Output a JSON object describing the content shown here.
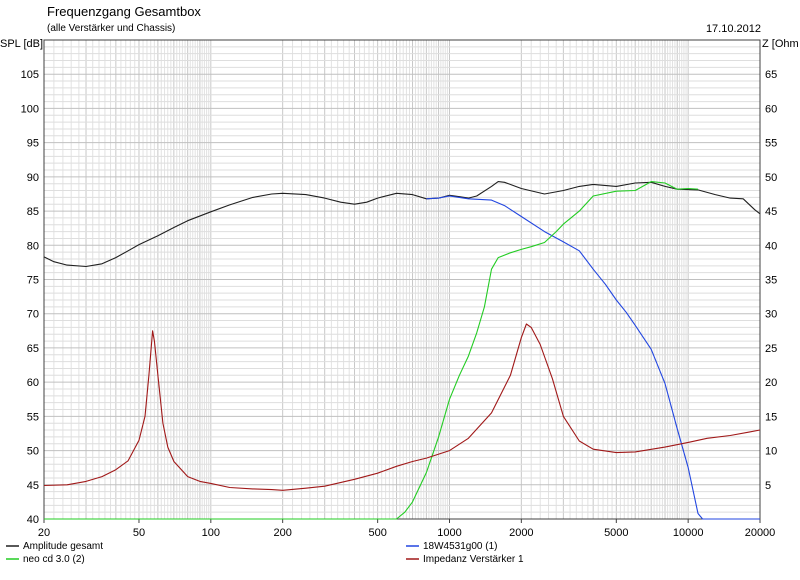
{
  "header": {
    "title": "Frequenzgang Gesamtbox",
    "subtitle": "(alle Verstärker und Chassis)",
    "date": "17.10.2012"
  },
  "chart_data": {
    "type": "line",
    "xscale": "log",
    "xlim": [
      20,
      20000
    ],
    "ylim_left": [
      40,
      110
    ],
    "ylim_right": [
      0,
      70
    ],
    "ylabel_left": "SPL [dB]",
    "ylabel_right": "Z [Ohm",
    "grid": true,
    "x_ticks": [
      20,
      50,
      100,
      200,
      500,
      1000,
      2000,
      5000,
      10000,
      20000
    ],
    "x_tick_labels": [
      "20",
      "50",
      "100",
      "200",
      "500",
      "1000",
      "2000",
      "5000",
      "10000",
      "20000"
    ],
    "y_ticks_left": [
      40,
      45,
      50,
      55,
      60,
      65,
      70,
      75,
      80,
      85,
      90,
      95,
      100,
      105
    ],
    "y_ticks_right": [
      5,
      10,
      15,
      20,
      25,
      30,
      35,
      40,
      45,
      50,
      55,
      60,
      65
    ],
    "legend_position": "bottom",
    "series": [
      {
        "name": "Amplitude gesamt",
        "color": "#202020",
        "axis": "left",
        "points": [
          [
            20,
            78.3
          ],
          [
            22,
            77.6
          ],
          [
            25,
            77.1
          ],
          [
            30,
            76.9
          ],
          [
            35,
            77.3
          ],
          [
            40,
            78.2
          ],
          [
            45,
            79.2
          ],
          [
            50,
            80.1
          ],
          [
            60,
            81.4
          ],
          [
            70,
            82.6
          ],
          [
            80,
            83.6
          ],
          [
            100,
            84.9
          ],
          [
            120,
            85.9
          ],
          [
            150,
            87.0
          ],
          [
            180,
            87.5
          ],
          [
            200,
            87.6
          ],
          [
            250,
            87.4
          ],
          [
            300,
            86.9
          ],
          [
            350,
            86.3
          ],
          [
            400,
            86.0
          ],
          [
            450,
            86.3
          ],
          [
            500,
            86.9
          ],
          [
            600,
            87.6
          ],
          [
            700,
            87.4
          ],
          [
            800,
            86.8
          ],
          [
            900,
            86.9
          ],
          [
            1000,
            87.3
          ],
          [
            1100,
            87.1
          ],
          [
            1200,
            86.9
          ],
          [
            1300,
            87.2
          ],
          [
            1500,
            88.6
          ],
          [
            1600,
            89.3
          ],
          [
            1700,
            89.2
          ],
          [
            2000,
            88.3
          ],
          [
            2500,
            87.5
          ],
          [
            3000,
            88.0
          ],
          [
            3500,
            88.6
          ],
          [
            4000,
            88.9
          ],
          [
            5000,
            88.6
          ],
          [
            6000,
            89.1
          ],
          [
            7000,
            89.2
          ],
          [
            8000,
            88.6
          ],
          [
            9000,
            88.2
          ],
          [
            11000,
            88.1
          ],
          [
            13000,
            87.4
          ],
          [
            15000,
            86.9
          ],
          [
            17000,
            86.8
          ],
          [
            19000,
            85.2
          ],
          [
            20000,
            84.6
          ]
        ]
      },
      {
        "name": "18W4531g00 (1)",
        "color": "#2246e0",
        "axis": "left",
        "points": [
          [
            800,
            86.8
          ],
          [
            900,
            86.9
          ],
          [
            1000,
            87.2
          ],
          [
            1200,
            86.8
          ],
          [
            1500,
            86.6
          ],
          [
            1700,
            85.8
          ],
          [
            2000,
            84.2
          ],
          [
            2500,
            82.0
          ],
          [
            3000,
            80.5
          ],
          [
            3500,
            79.2
          ],
          [
            4000,
            76.5
          ],
          [
            4500,
            74.3
          ],
          [
            5000,
            72.0
          ],
          [
            5500,
            70.2
          ],
          [
            6000,
            68.3
          ],
          [
            7000,
            64.8
          ],
          [
            8000,
            59.8
          ],
          [
            9000,
            53.2
          ],
          [
            10000,
            47.5
          ],
          [
            11000,
            40.8
          ],
          [
            11500,
            40.0
          ],
          [
            20000,
            40.0
          ]
        ]
      },
      {
        "name": "neo cd 3.0 (2)",
        "color": "#22cc22",
        "axis": "left",
        "points": [
          [
            20,
            40.0
          ],
          [
            600,
            40.0
          ],
          [
            650,
            41.0
          ],
          [
            700,
            42.5
          ],
          [
            800,
            46.8
          ],
          [
            900,
            52.0
          ],
          [
            1000,
            57.5
          ],
          [
            1100,
            61.0
          ],
          [
            1200,
            63.8
          ],
          [
            1300,
            67.2
          ],
          [
            1400,
            71.0
          ],
          [
            1500,
            76.5
          ],
          [
            1600,
            78.2
          ],
          [
            1800,
            78.9
          ],
          [
            2000,
            79.4
          ],
          [
            2200,
            79.8
          ],
          [
            2500,
            80.4
          ],
          [
            2800,
            82.0
          ],
          [
            3000,
            83.1
          ],
          [
            3500,
            85.0
          ],
          [
            4000,
            87.2
          ],
          [
            5000,
            87.9
          ],
          [
            6000,
            88.0
          ],
          [
            7000,
            89.3
          ],
          [
            8000,
            89.1
          ],
          [
            9000,
            88.2
          ],
          [
            10000,
            88.3
          ],
          [
            11000,
            88.2
          ]
        ]
      },
      {
        "name": "Impedanz Verstärker 1",
        "color": "#a01818",
        "axis": "right",
        "points": [
          [
            20,
            4.9
          ],
          [
            25,
            5.0
          ],
          [
            30,
            5.5
          ],
          [
            35,
            6.2
          ],
          [
            40,
            7.2
          ],
          [
            45,
            8.5
          ],
          [
            50,
            11.5
          ],
          [
            53,
            15.0
          ],
          [
            55,
            21.0
          ],
          [
            57,
            27.5
          ],
          [
            58,
            26.0
          ],
          [
            60,
            21.0
          ],
          [
            63,
            14.0
          ],
          [
            66,
            10.5
          ],
          [
            70,
            8.4
          ],
          [
            80,
            6.2
          ],
          [
            90,
            5.5
          ],
          [
            100,
            5.2
          ],
          [
            120,
            4.6
          ],
          [
            150,
            4.4
          ],
          [
            180,
            4.3
          ],
          [
            200,
            4.2
          ],
          [
            250,
            4.5
          ],
          [
            300,
            4.8
          ],
          [
            400,
            5.8
          ],
          [
            500,
            6.7
          ],
          [
            600,
            7.7
          ],
          [
            700,
            8.4
          ],
          [
            800,
            8.9
          ],
          [
            1000,
            10.0
          ],
          [
            1200,
            11.8
          ],
          [
            1500,
            15.5
          ],
          [
            1800,
            21.0
          ],
          [
            2000,
            26.5
          ],
          [
            2100,
            28.5
          ],
          [
            2200,
            28.0
          ],
          [
            2400,
            25.5
          ],
          [
            2700,
            20.5
          ],
          [
            3000,
            15.0
          ],
          [
            3500,
            11.4
          ],
          [
            4000,
            10.2
          ],
          [
            5000,
            9.7
          ],
          [
            6000,
            9.8
          ],
          [
            8000,
            10.5
          ],
          [
            10000,
            11.2
          ],
          [
            12000,
            11.8
          ],
          [
            15000,
            12.2
          ],
          [
            18000,
            12.7
          ],
          [
            20000,
            13.0
          ]
        ]
      }
    ]
  }
}
